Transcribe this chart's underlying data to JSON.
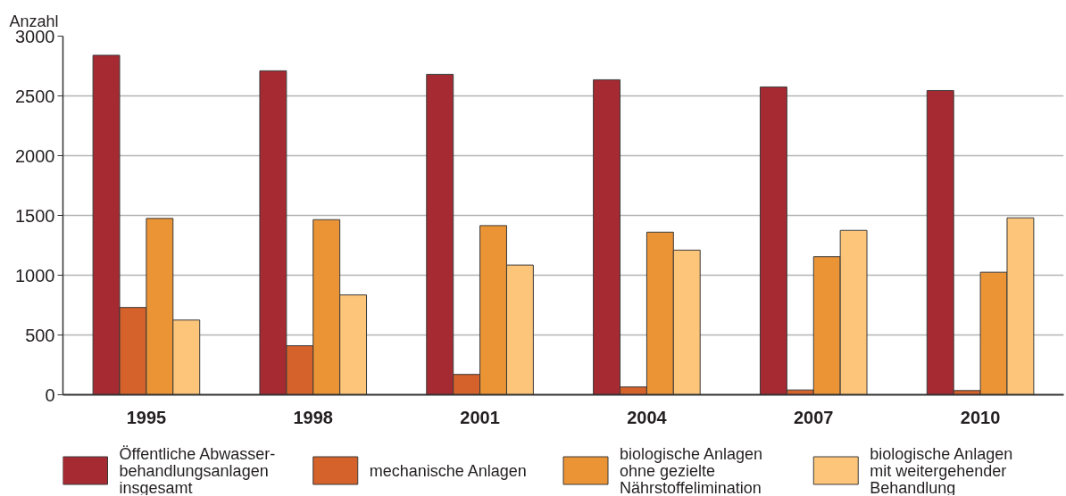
{
  "chart_data": {
    "type": "bar",
    "ylabel": "Anzahl",
    "categories": [
      "1995",
      "1998",
      "2001",
      "2004",
      "2007",
      "2010"
    ],
    "series": [
      {
        "name": "Öffentliche Abwasser-\nbehandlungsanlagen\ninsgesamt",
        "color": "#a62a32",
        "values": [
          2840,
          2710,
          2680,
          2635,
          2575,
          2545
        ]
      },
      {
        "name": "mechanische Anlagen",
        "color": "#d4622a",
        "values": [
          730,
          410,
          170,
          65,
          40,
          35
        ]
      },
      {
        "name": "biologische Anlagen\nohne gezielte\nNährstoffelimination",
        "color": "#eb9436",
        "values": [
          1475,
          1465,
          1415,
          1360,
          1155,
          1025
        ]
      },
      {
        "name": "biologische Anlagen\nmit weitergehender\nBehandlung",
        "color": "#fcc579",
        "values": [
          625,
          835,
          1085,
          1210,
          1375,
          1480
        ]
      }
    ],
    "ylim": [
      0,
      3000
    ],
    "yticks": [
      0,
      500,
      1000,
      1500,
      2000,
      2500,
      3000
    ],
    "grid": "y",
    "legend": "bottom"
  }
}
